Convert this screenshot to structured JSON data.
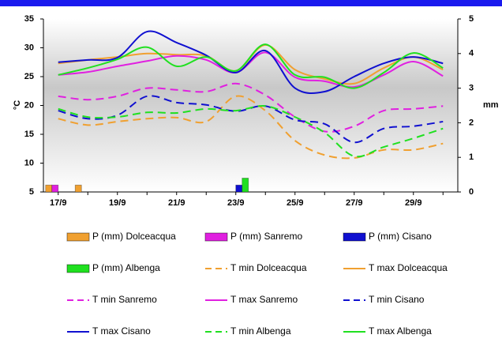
{
  "chart_data": {
    "type": "combo",
    "ylabel": "°C",
    "y2label": "mm",
    "categories": [
      "17/9",
      null,
      "19/9",
      null,
      "21/9",
      null,
      "23/9",
      null,
      "25/9",
      null,
      "27/9",
      null,
      "29/9",
      null
    ],
    "ylim": [
      5,
      35
    ],
    "yticks": [
      5,
      10,
      15,
      20,
      25,
      30,
      35
    ],
    "y2lim": [
      0,
      5
    ],
    "y2ticks": [
      0,
      1,
      2,
      3,
      4,
      5
    ],
    "series": [
      {
        "name": "P (mm) Dolceacqua",
        "type": "bar",
        "axis": "y2",
        "color": "#f0a030",
        "values": [
          0.2,
          0.2,
          0,
          0,
          0,
          0,
          0,
          0,
          0,
          0,
          0,
          0,
          0,
          0
        ]
      },
      {
        "name": "P (mm) Sanremo",
        "type": "bar",
        "axis": "y2",
        "color": "#e020e0",
        "values": [
          0.2,
          0,
          0,
          0,
          0,
          0,
          0,
          0,
          0,
          0,
          0,
          0,
          0,
          0
        ]
      },
      {
        "name": "P (mm) Cisano",
        "type": "bar",
        "axis": "y2",
        "color": "#1010d0",
        "values": [
          0,
          0,
          0,
          0,
          0,
          0,
          0.2,
          0,
          0,
          0,
          0,
          0,
          0,
          0
        ]
      },
      {
        "name": "P (mm) Albenga",
        "type": "bar",
        "axis": "y2",
        "color": "#20e020",
        "values": [
          0,
          0,
          0,
          0,
          0,
          0,
          0.4,
          0,
          0,
          0,
          0,
          0,
          0,
          0
        ]
      },
      {
        "name": "T min Dolceacqua",
        "type": "line",
        "dash": true,
        "color": "#f0a030",
        "values": [
          17.7,
          16.6,
          17.2,
          17.7,
          17.9,
          17.2,
          21.6,
          19.1,
          13.9,
          11.4,
          10.9,
          12.3,
          12.3,
          13.4
        ]
      },
      {
        "name": "T max Dolceacqua",
        "type": "line",
        "dash": false,
        "color": "#f0a030",
        "values": [
          27.3,
          27.9,
          28.4,
          29,
          28.8,
          28.6,
          26,
          30.5,
          26.2,
          24.6,
          23.8,
          26.5,
          28.4,
          26.2
        ]
      },
      {
        "name": "T min Sanremo",
        "type": "line",
        "dash": true,
        "color": "#e020e0",
        "values": [
          21.6,
          21,
          21.6,
          23,
          22.7,
          22.4,
          23.8,
          21.8,
          18,
          15.5,
          16.4,
          19.1,
          19.4,
          19.9
        ]
      },
      {
        "name": "T max Sanremo",
        "type": "line",
        "dash": false,
        "color": "#e020e0",
        "values": [
          25.3,
          25.8,
          26.8,
          27.7,
          28.6,
          27.9,
          25.7,
          29.2,
          24.9,
          24.2,
          23.2,
          25.3,
          27.6,
          25.1
        ]
      },
      {
        "name": "T min Cisano",
        "type": "line",
        "dash": true,
        "color": "#1010d0",
        "values": [
          19.1,
          17.7,
          18.3,
          21.6,
          20.5,
          20.1,
          19,
          19.9,
          17.5,
          16.8,
          13.6,
          16,
          16.4,
          17.2
        ]
      },
      {
        "name": "T max Cisano",
        "type": "line",
        "dash": false,
        "color": "#1010d0",
        "values": [
          27.5,
          27.9,
          28.3,
          32.8,
          30.9,
          28.7,
          25.7,
          29.5,
          23,
          22.4,
          25,
          27.3,
          28.4,
          27.3
        ]
      },
      {
        "name": "T min Albenga",
        "type": "line",
        "dash": true,
        "color": "#20e020",
        "values": [
          19.4,
          18,
          18,
          18.8,
          18.7,
          19.4,
          19.1,
          19.9,
          18,
          15.3,
          11.2,
          12.8,
          14.3,
          16
        ]
      },
      {
        "name": "T max Albenga",
        "type": "line",
        "dash": false,
        "color": "#20e020",
        "values": [
          25.3,
          26.5,
          28,
          30.1,
          26.8,
          28.4,
          26,
          30.6,
          25.3,
          24.9,
          23,
          25.7,
          29.1,
          26.5
        ]
      }
    ]
  }
}
